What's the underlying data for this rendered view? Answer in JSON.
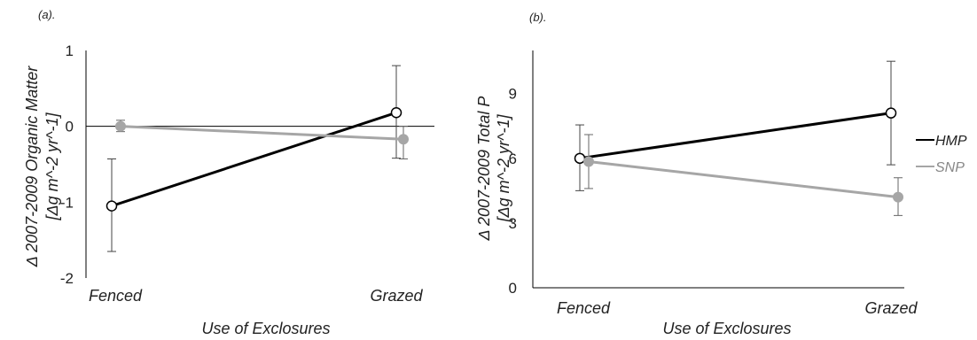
{
  "chart_data": [
    {
      "type": "line",
      "panel_label": "(a).",
      "title": "",
      "xlabel": "Use of Exclosures",
      "ylabel_line1": "Δ 2007-2009 Organic Matter",
      "ylabel_line2": "[Δg m^-2 yr^-1]",
      "categories": [
        "Fenced",
        "Grazed"
      ],
      "ylim": [
        -2,
        1
      ],
      "yticks": [
        1,
        0,
        -1,
        -2
      ],
      "zero_line": true,
      "series": [
        {
          "key": "HMP",
          "color": "#000000",
          "marker": "open-circle",
          "values": [
            -1.05,
            0.18
          ],
          "err_low": [
            -1.65,
            -0.42
          ],
          "err_high": [
            -0.43,
            0.8
          ]
        },
        {
          "key": "SNP",
          "color": "#a6a6a6",
          "marker": "filled-circle",
          "values": [
            0.0,
            -0.17
          ],
          "err_low": [
            -0.07,
            -0.43
          ],
          "err_high": [
            0.08,
            0.0
          ]
        }
      ]
    },
    {
      "type": "line",
      "panel_label": "(b).",
      "title": "",
      "xlabel": "Use of Exclosures",
      "ylabel_line1": "Δ 2007-2009 Total P",
      "ylabel_line2": "[Δg m^-2 yr^-1]",
      "categories": [
        "Fenced",
        "Grazed"
      ],
      "ylim": [
        0,
        11
      ],
      "yticks": [
        9,
        6,
        3,
        0
      ],
      "zero_line": false,
      "series": [
        {
          "key": "HMP",
          "color": "#000000",
          "marker": "open-circle",
          "values": [
            6.0,
            8.1
          ],
          "err_low": [
            4.5,
            5.7
          ],
          "err_high": [
            7.55,
            10.5
          ]
        },
        {
          "key": "SNP",
          "color": "#a6a6a6",
          "marker": "filled-circle",
          "values": [
            5.85,
            4.2
          ],
          "err_low": [
            4.6,
            3.35
          ],
          "err_high": [
            7.1,
            5.1
          ]
        }
      ]
    }
  ],
  "legend": {
    "placement": "right",
    "items": [
      {
        "name": "HMP",
        "color": "#000000"
      },
      {
        "name": "SNP",
        "color": "#a6a6a6"
      }
    ]
  }
}
